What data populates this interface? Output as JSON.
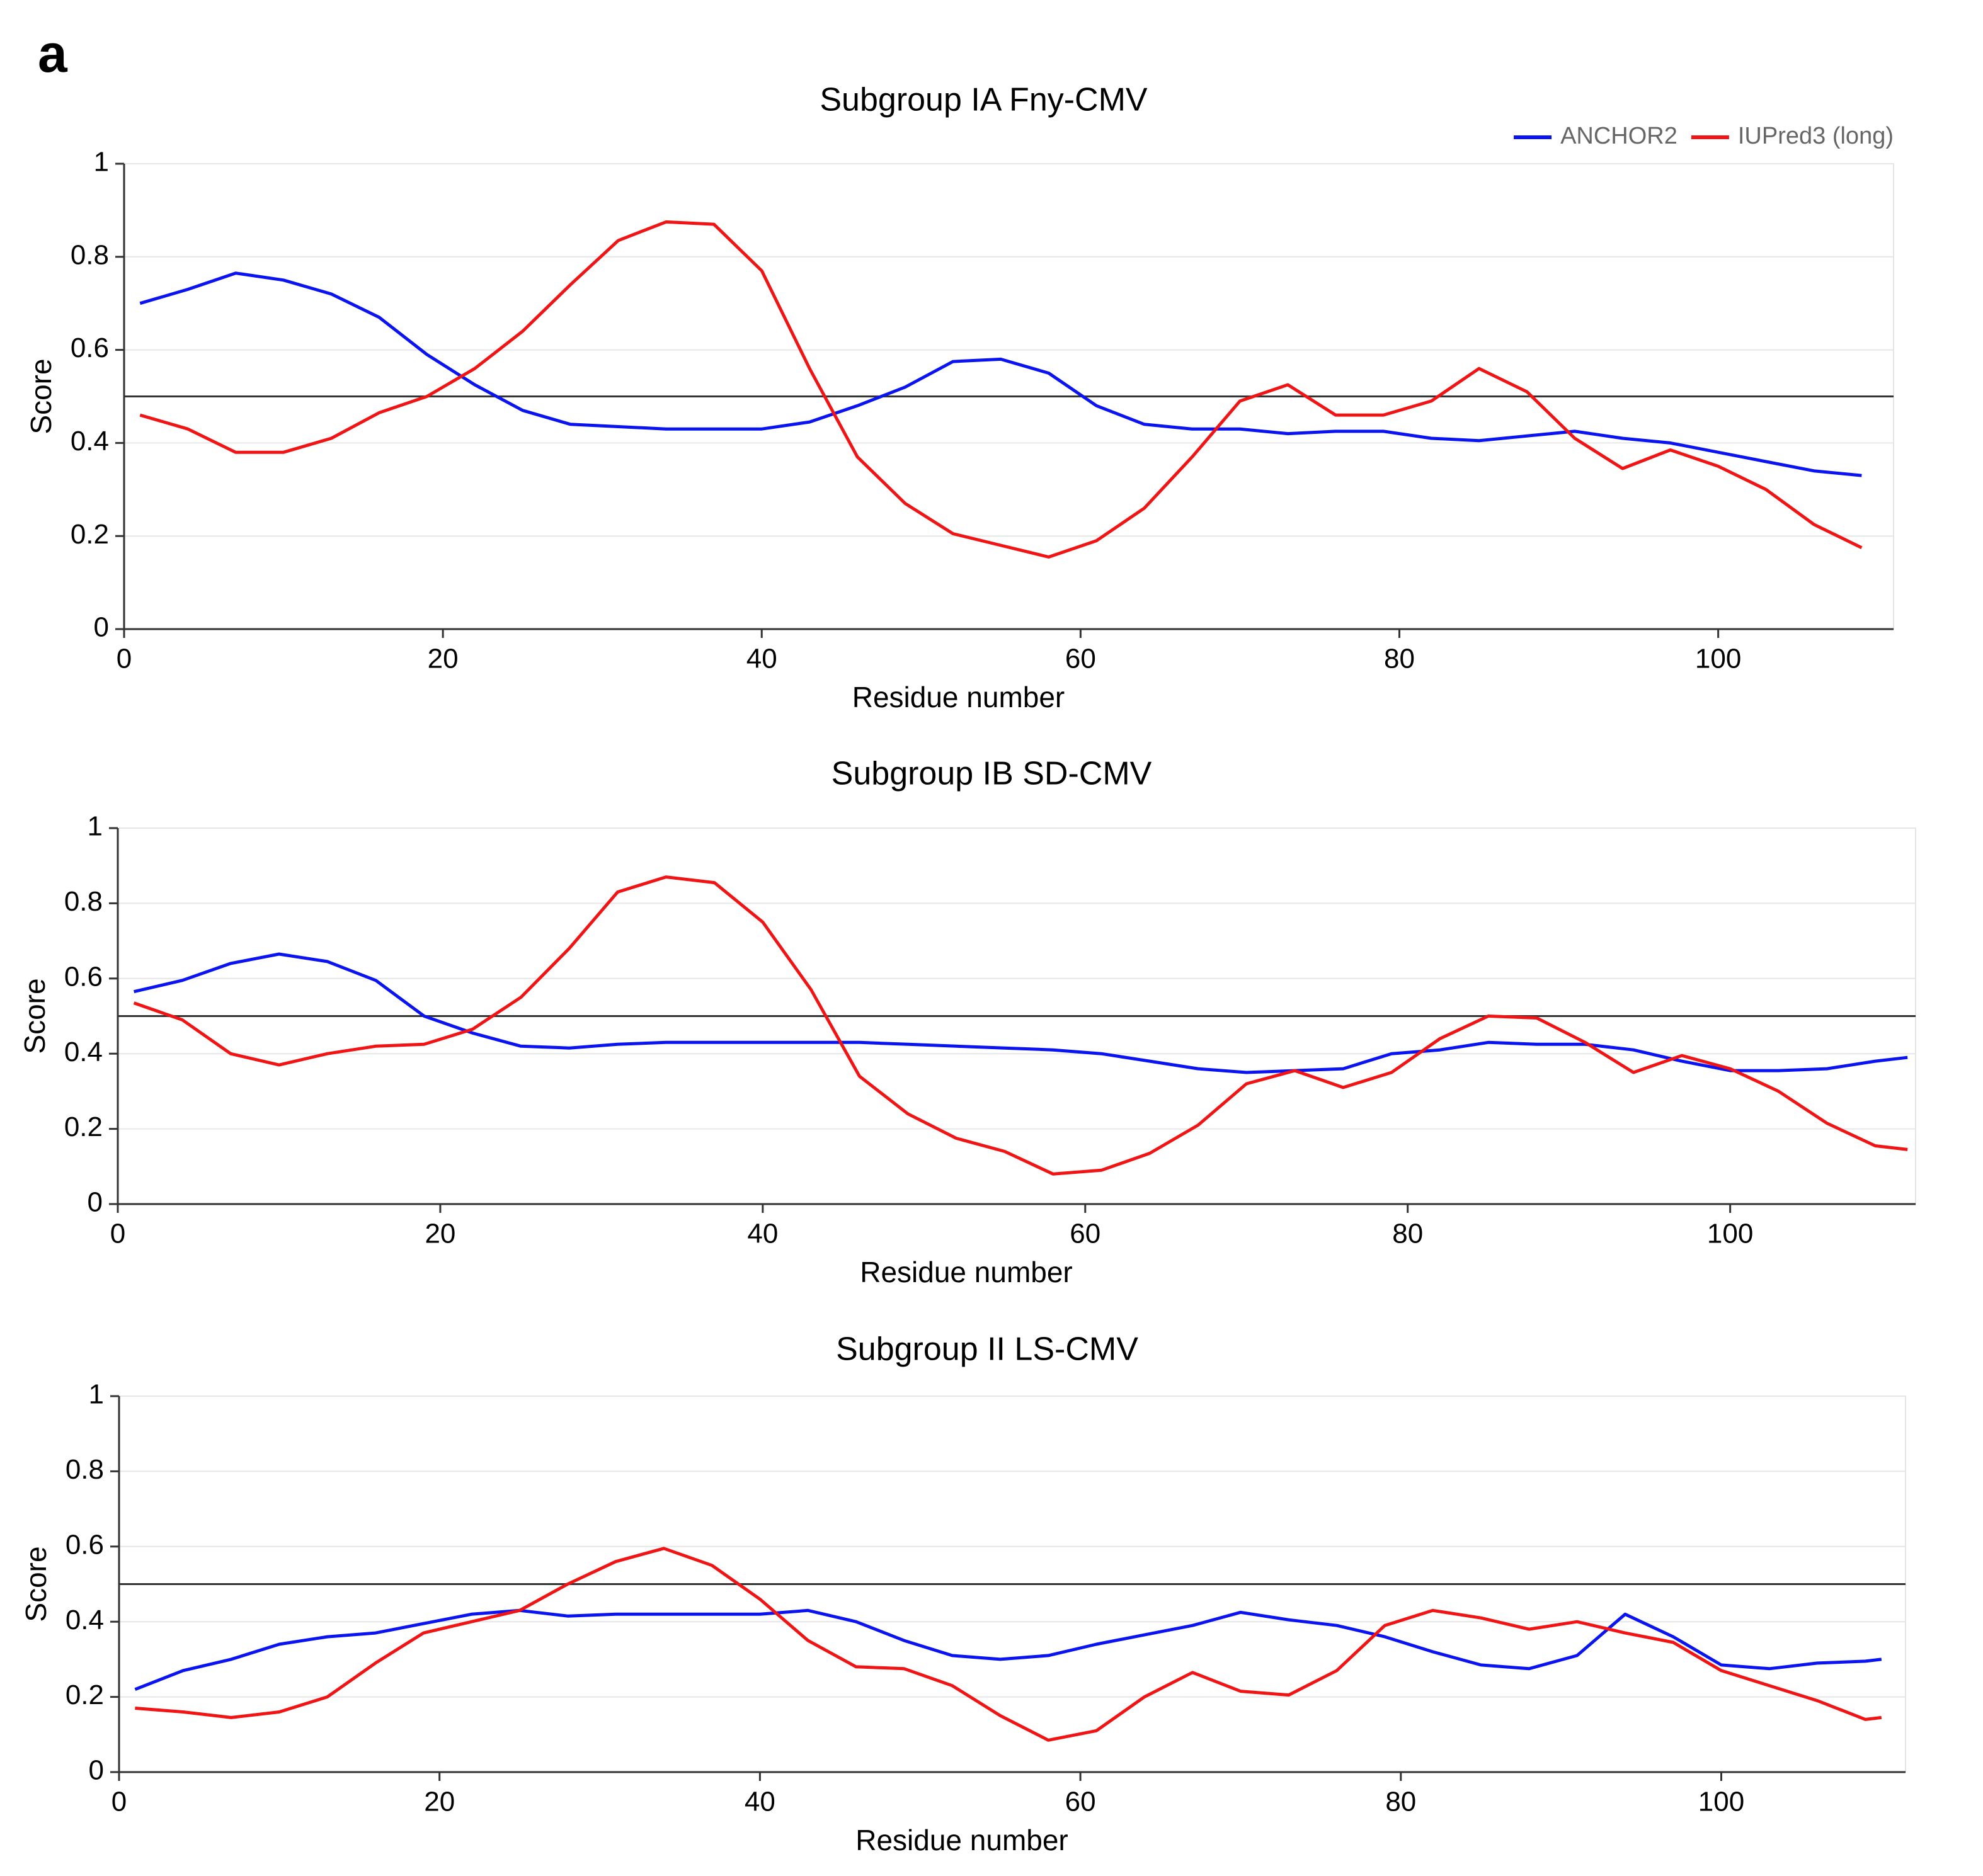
{
  "panel_label": "a",
  "chart_data": [
    {
      "type": "line",
      "title": "Subgroup IA Fny-CMV",
      "x_label": "Residue number",
      "y_label": "Score",
      "xlim": [
        0,
        111
      ],
      "xticks": [
        0,
        20,
        40,
        60,
        80,
        100
      ],
      "ylim": [
        0,
        1
      ],
      "yticks": [
        0,
        0.2,
        0.4,
        0.6,
        0.8,
        1
      ],
      "grid": true,
      "reference_line": 0.5,
      "legend": "top-right",
      "x": [
        1,
        4,
        7,
        10,
        13,
        16,
        19,
        22,
        25,
        28,
        31,
        34,
        37,
        40,
        43,
        46,
        49,
        52,
        55,
        58,
        61,
        64,
        67,
        70,
        73,
        76,
        79,
        82,
        85,
        88,
        91,
        94,
        97,
        100,
        103,
        106,
        109
      ],
      "series": [
        {
          "name": "ANCHOR2",
          "color": "#0a14f0",
          "values": [
            0.7,
            0.73,
            0.765,
            0.75,
            0.72,
            0.67,
            0.59,
            0.525,
            0.47,
            0.44,
            0.435,
            0.43,
            0.43,
            0.43,
            0.445,
            0.48,
            0.52,
            0.575,
            0.58,
            0.55,
            0.48,
            0.44,
            0.43,
            0.43,
            0.42,
            0.425,
            0.425,
            0.41,
            0.405,
            0.415,
            0.425,
            0.41,
            0.4,
            0.38,
            0.36,
            0.34,
            0.33
          ]
        },
        {
          "name": "IUPred3 (long)",
          "color": "#f01414",
          "values": [
            0.46,
            0.43,
            0.38,
            0.38,
            0.41,
            0.465,
            0.5,
            0.56,
            0.64,
            0.74,
            0.835,
            0.875,
            0.87,
            0.77,
            0.56,
            0.37,
            0.27,
            0.205,
            0.18,
            0.155,
            0.19,
            0.26,
            0.37,
            0.49,
            0.525,
            0.46,
            0.46,
            0.49,
            0.56,
            0.51,
            0.41,
            0.345,
            0.385,
            0.35,
            0.3,
            0.225,
            0.175
          ]
        }
      ]
    },
    {
      "type": "line",
      "title": "Subgroup IB SD-CMV",
      "x_label": "Residue number",
      "y_label": "Score",
      "xlim": [
        0,
        111.5
      ],
      "xticks": [
        0,
        20,
        40,
        60,
        80,
        100
      ],
      "ylim": [
        0,
        1
      ],
      "yticks": [
        0,
        0.2,
        0.4,
        0.6,
        0.8,
        1
      ],
      "grid": true,
      "reference_line": 0.5,
      "x": [
        1,
        4,
        7,
        10,
        13,
        16,
        19,
        22,
        25,
        28,
        31,
        34,
        37,
        40,
        43,
        46,
        49,
        52,
        55,
        58,
        61,
        64,
        67,
        70,
        73,
        76,
        79,
        82,
        85,
        88,
        91,
        94,
        97,
        100,
        103,
        106,
        109,
        111
      ],
      "series": [
        {
          "name": "ANCHOR2",
          "color": "#0a14f0",
          "values": [
            0.565,
            0.595,
            0.64,
            0.665,
            0.645,
            0.595,
            0.5,
            0.455,
            0.42,
            0.415,
            0.425,
            0.43,
            0.43,
            0.43,
            0.43,
            0.43,
            0.425,
            0.42,
            0.415,
            0.41,
            0.4,
            0.38,
            0.36,
            0.35,
            0.355,
            0.36,
            0.4,
            0.41,
            0.43,
            0.425,
            0.425,
            0.41,
            0.38,
            0.355,
            0.355,
            0.36,
            0.38,
            0.39
          ]
        },
        {
          "name": "IUPred3 (long)",
          "color": "#f01414",
          "values": [
            0.535,
            0.49,
            0.4,
            0.37,
            0.4,
            0.42,
            0.425,
            0.465,
            0.55,
            0.68,
            0.83,
            0.87,
            0.855,
            0.75,
            0.57,
            0.34,
            0.24,
            0.175,
            0.14,
            0.08,
            0.09,
            0.135,
            0.21,
            0.32,
            0.355,
            0.31,
            0.35,
            0.44,
            0.5,
            0.495,
            0.43,
            0.35,
            0.395,
            0.36,
            0.3,
            0.215,
            0.155,
            0.145
          ]
        }
      ]
    },
    {
      "type": "line",
      "title": "Subgroup II LS-CMV",
      "x_label": "Residue number",
      "y_label": "Score",
      "xlim": [
        0,
        111.5
      ],
      "xticks": [
        0,
        20,
        40,
        60,
        80,
        100
      ],
      "ylim": [
        0,
        1
      ],
      "yticks": [
        0,
        0.2,
        0.4,
        0.6,
        0.8,
        1
      ],
      "grid": true,
      "reference_line": 0.5,
      "x": [
        1,
        4,
        7,
        10,
        13,
        16,
        19,
        22,
        25,
        28,
        31,
        34,
        37,
        40,
        43,
        46,
        49,
        52,
        55,
        58,
        61,
        64,
        67,
        70,
        73,
        76,
        79,
        82,
        85,
        88,
        91,
        94,
        97,
        100,
        103,
        106,
        109,
        110
      ],
      "series": [
        {
          "name": "ANCHOR2",
          "color": "#0a14f0",
          "values": [
            0.22,
            0.27,
            0.3,
            0.34,
            0.36,
            0.37,
            0.395,
            0.42,
            0.43,
            0.415,
            0.42,
            0.42,
            0.42,
            0.42,
            0.43,
            0.4,
            0.35,
            0.31,
            0.3,
            0.31,
            0.34,
            0.365,
            0.39,
            0.425,
            0.405,
            0.39,
            0.36,
            0.32,
            0.285,
            0.275,
            0.31,
            0.42,
            0.36,
            0.285,
            0.275,
            0.29,
            0.295,
            0.3
          ]
        },
        {
          "name": "IUPred3 (long)",
          "color": "#f01414",
          "values": [
            0.17,
            0.16,
            0.145,
            0.16,
            0.2,
            0.29,
            0.37,
            0.4,
            0.43,
            0.5,
            0.56,
            0.595,
            0.55,
            0.46,
            0.35,
            0.28,
            0.275,
            0.23,
            0.15,
            0.085,
            0.11,
            0.2,
            0.265,
            0.215,
            0.205,
            0.27,
            0.39,
            0.43,
            0.41,
            0.38,
            0.4,
            0.37,
            0.345,
            0.27,
            0.23,
            0.19,
            0.14,
            0.145
          ]
        }
      ]
    }
  ]
}
